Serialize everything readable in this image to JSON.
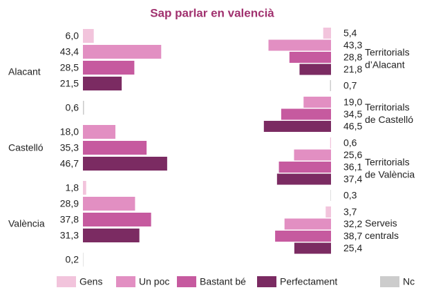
{
  "chart_data": [
    {
      "type": "bar",
      "orientation": "horizontal",
      "title": "Sap parlar en valencià",
      "categories": [
        "Alacant",
        "Castelló",
        "València"
      ],
      "xlim": [
        0,
        50
      ],
      "series": [
        {
          "name": "Gens",
          "color": "#f2c4dc",
          "values": [
            6.0,
            null,
            1.8
          ],
          "value_labels": [
            "6,0",
            null,
            "1,8"
          ]
        },
        {
          "name": "Un poc",
          "color": "#e28fc2",
          "values": [
            43.4,
            18.0,
            28.9
          ],
          "value_labels": [
            "43,4",
            "18,0",
            "28,9"
          ]
        },
        {
          "name": "Bastant bé",
          "color": "#c65a9f",
          "values": [
            28.5,
            35.3,
            37.8
          ],
          "value_labels": [
            "28,5",
            "35,3",
            "37,8"
          ]
        },
        {
          "name": "Perfectament",
          "color": "#7b2b62",
          "values": [
            21.5,
            46.7,
            31.3
          ],
          "value_labels": [
            "21,5",
            "46,7",
            "31,3"
          ]
        },
        {
          "name": "Nc",
          "color": "#cccccc",
          "values": [
            0.6,
            null,
            0.2
          ],
          "value_labels": [
            "0,6",
            null,
            "0,2"
          ]
        }
      ]
    },
    {
      "type": "bar",
      "orientation": "horizontal-reversed",
      "categories": [
        [
          "Territorials",
          "d’Alacant"
        ],
        [
          "Territorials",
          "de Castelló"
        ],
        [
          "Territorials",
          "de València"
        ],
        [
          "Serveis",
          "centrals"
        ]
      ],
      "xlim": [
        0,
        50
      ],
      "series": [
        {
          "values": [
            5.4,
            null,
            0.6,
            3.7
          ],
          "value_labels": [
            "5,4",
            null,
            "0,6",
            "3,7"
          ]
        },
        {
          "values": [
            43.3,
            19.0,
            25.6,
            32.2
          ],
          "value_labels": [
            "43,3",
            "19,0",
            "25,6",
            "32,2"
          ]
        },
        {
          "values": [
            28.8,
            34.5,
            36.1,
            38.7
          ],
          "value_labels": [
            "28,8",
            "34,5",
            "36,1",
            "38,7"
          ]
        },
        {
          "values": [
            21.8,
            46.5,
            37.4,
            25.4
          ],
          "value_labels": [
            "21,8",
            "46,5",
            "37,4",
            "25,4"
          ]
        },
        {
          "values": [
            0.7,
            null,
            0.3,
            null
          ],
          "value_labels": [
            "0,7",
            null,
            "0,3",
            null
          ]
        }
      ]
    }
  ]
}
